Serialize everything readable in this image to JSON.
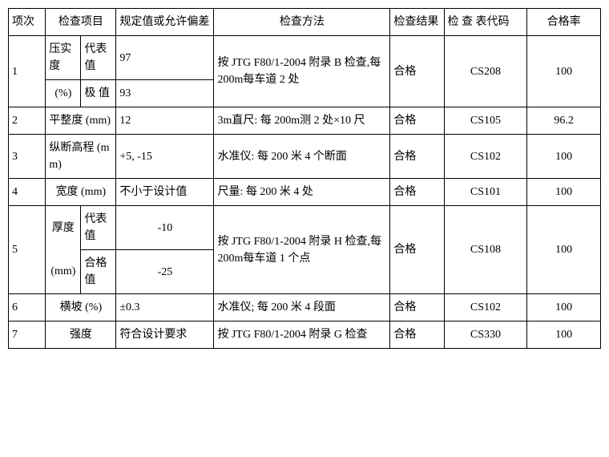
{
  "headers": {
    "num": "项次",
    "item": "检查项目",
    "spec": "规定值或允许偏差",
    "method": "检查方法",
    "result": "检查结果",
    "code": "检 查 表代码",
    "rate": "合格率"
  },
  "rows": {
    "r1": {
      "num": "1",
      "item_main": "压实度",
      "item_unit": "(%)",
      "sub1": "代表值",
      "sub2": "极 值",
      "spec1": "97",
      "spec2": "93",
      "method": "按 JTG F80/1-2004 附录 B 检查,每 200m每车道 2 处",
      "result": "合格",
      "code": "CS208",
      "rate": "100"
    },
    "r2": {
      "num": "2",
      "item": "平整度 (mm)",
      "spec": "12",
      "method": "3m直尺: 每 200m测 2 处×10 尺",
      "result": "合格",
      "code": "CS105",
      "rate": "96.2"
    },
    "r3": {
      "num": "3",
      "item": "纵断高程 (mm)",
      "spec": "+5, -15",
      "method": "水准仪: 每 200 米 4 个断面",
      "result": "合格",
      "code": "CS102",
      "rate": "100"
    },
    "r4": {
      "num": "4",
      "item": "宽度 (mm)",
      "spec": "不小于设计值",
      "method": "尺量: 每 200 米 4 处",
      "result": "合格",
      "code": "CS101",
      "rate": "100"
    },
    "r5": {
      "num": "5",
      "item_main": "厚度",
      "item_unit": "(mm)",
      "sub1": "代表值",
      "sub2": "合格值",
      "spec1": "-10",
      "spec2": "-25",
      "method": "按 JTG F80/1-2004 附录 H 检查,每 200m每车道 1 个点",
      "result": "合格",
      "code": "CS108",
      "rate": "100"
    },
    "r6": {
      "num": "6",
      "item": "横坡 (%)",
      "spec": "±0.3",
      "method": "水准仪; 每 200 米 4 段面",
      "result": "合格",
      "code": "CS102",
      "rate": "100"
    },
    "r7": {
      "num": "7",
      "item": "强度",
      "spec": "符合设计要求",
      "method": "按 JTG F80/1-2004 附录 G 检查",
      "result": "合格",
      "code": "CS330",
      "rate": "100"
    }
  }
}
